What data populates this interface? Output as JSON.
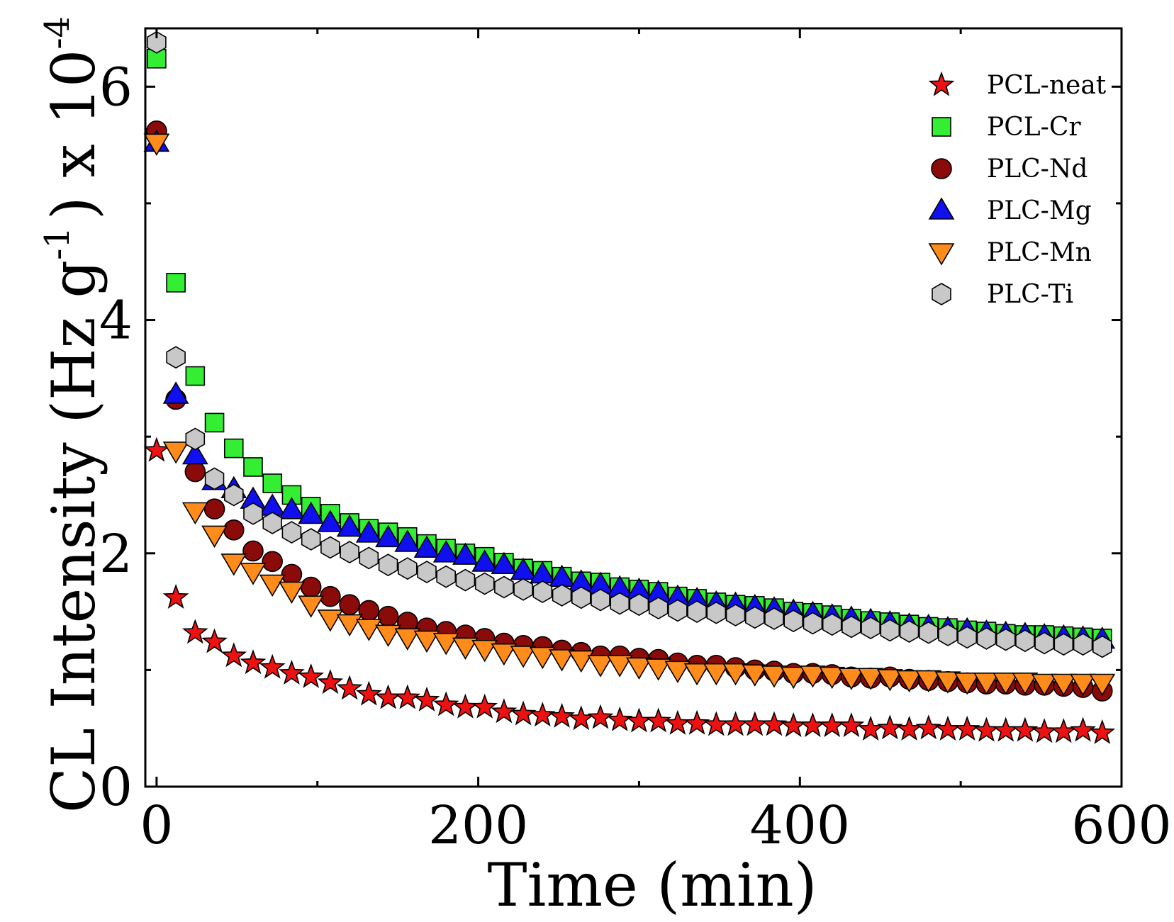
{
  "chart_data": {
    "type": "scatter",
    "xlabel": "Time (min)",
    "ylabel": {
      "prefix": "CL Intensity (Hz g",
      "sup1": "-1",
      "mid": ") x 10",
      "sup2": "-4"
    },
    "xlim": [
      -7,
      600
    ],
    "ylim": [
      0,
      6.5
    ],
    "xticks": [
      0,
      200,
      400,
      600
    ],
    "xtick_labels": [
      "0",
      "200",
      "400",
      "600"
    ],
    "yticks": [
      0,
      2,
      4,
      6
    ],
    "ytick_labels": [
      "0",
      "2",
      "4",
      "6"
    ],
    "legend_position": "top-right",
    "grid": false,
    "series": [
      {
        "name": "PCL-neat",
        "marker": "star",
        "color": "#ee1111",
        "points": [
          [
            0,
            2.88
          ],
          [
            12,
            1.62
          ],
          [
            24,
            1.32
          ],
          [
            36,
            1.24
          ],
          [
            48,
            1.12
          ],
          [
            60,
            1.06
          ],
          [
            72,
            1.02
          ],
          [
            84,
            0.97
          ],
          [
            96,
            0.94
          ],
          [
            108,
            0.89
          ],
          [
            120,
            0.84
          ],
          [
            132,
            0.79
          ],
          [
            144,
            0.76
          ],
          [
            156,
            0.76
          ],
          [
            168,
            0.74
          ],
          [
            180,
            0.7
          ],
          [
            192,
            0.68
          ],
          [
            204,
            0.68
          ],
          [
            216,
            0.64
          ],
          [
            228,
            0.62
          ],
          [
            240,
            0.61
          ],
          [
            252,
            0.6
          ],
          [
            264,
            0.58
          ],
          [
            276,
            0.59
          ],
          [
            288,
            0.57
          ],
          [
            300,
            0.56
          ],
          [
            312,
            0.56
          ],
          [
            324,
            0.54
          ],
          [
            336,
            0.54
          ],
          [
            348,
            0.53
          ],
          [
            360,
            0.53
          ],
          [
            372,
            0.53
          ],
          [
            384,
            0.53
          ],
          [
            396,
            0.52
          ],
          [
            408,
            0.52
          ],
          [
            420,
            0.52
          ],
          [
            432,
            0.52
          ],
          [
            444,
            0.49
          ],
          [
            456,
            0.5
          ],
          [
            468,
            0.49
          ],
          [
            480,
            0.5
          ],
          [
            492,
            0.49
          ],
          [
            504,
            0.49
          ],
          [
            516,
            0.48
          ],
          [
            528,
            0.48
          ],
          [
            540,
            0.48
          ],
          [
            552,
            0.47
          ],
          [
            564,
            0.47
          ],
          [
            576,
            0.48
          ],
          [
            588,
            0.46
          ]
        ]
      },
      {
        "name": "PCL-Cr",
        "marker": "square",
        "color": "#33ee33",
        "points": [
          [
            0,
            6.24
          ],
          [
            12,
            4.32
          ],
          [
            24,
            3.52
          ],
          [
            36,
            3.12
          ],
          [
            48,
            2.9
          ],
          [
            60,
            2.74
          ],
          [
            72,
            2.6
          ],
          [
            84,
            2.5
          ],
          [
            96,
            2.4
          ],
          [
            108,
            2.34
          ],
          [
            120,
            2.26
          ],
          [
            132,
            2.21
          ],
          [
            144,
            2.18
          ],
          [
            156,
            2.14
          ],
          [
            168,
            2.08
          ],
          [
            180,
            2.04
          ],
          [
            192,
            2.0
          ],
          [
            204,
            1.97
          ],
          [
            216,
            1.92
          ],
          [
            228,
            1.87
          ],
          [
            240,
            1.85
          ],
          [
            252,
            1.8
          ],
          [
            264,
            1.76
          ],
          [
            276,
            1.75
          ],
          [
            288,
            1.71
          ],
          [
            300,
            1.69
          ],
          [
            312,
            1.67
          ],
          [
            324,
            1.63
          ],
          [
            336,
            1.61
          ],
          [
            348,
            1.58
          ],
          [
            360,
            1.56
          ],
          [
            372,
            1.55
          ],
          [
            384,
            1.53
          ],
          [
            396,
            1.5
          ],
          [
            408,
            1.49
          ],
          [
            420,
            1.47
          ],
          [
            432,
            1.44
          ],
          [
            444,
            1.42
          ],
          [
            456,
            1.41
          ],
          [
            468,
            1.39
          ],
          [
            480,
            1.37
          ],
          [
            492,
            1.36
          ],
          [
            504,
            1.34
          ],
          [
            516,
            1.33
          ],
          [
            528,
            1.31
          ],
          [
            540,
            1.3
          ],
          [
            552,
            1.3
          ],
          [
            564,
            1.29
          ],
          [
            576,
            1.28
          ],
          [
            588,
            1.27
          ]
        ]
      },
      {
        "name": "PLC-Nd",
        "marker": "circle",
        "color": "#8b0a0a",
        "points": [
          [
            0,
            5.62
          ],
          [
            12,
            3.32
          ],
          [
            24,
            2.7
          ],
          [
            36,
            2.38
          ],
          [
            48,
            2.2
          ],
          [
            60,
            2.02
          ],
          [
            72,
            1.93
          ],
          [
            84,
            1.82
          ],
          [
            96,
            1.71
          ],
          [
            108,
            1.63
          ],
          [
            120,
            1.56
          ],
          [
            132,
            1.51
          ],
          [
            144,
            1.46
          ],
          [
            156,
            1.41
          ],
          [
            168,
            1.36
          ],
          [
            180,
            1.33
          ],
          [
            192,
            1.3
          ],
          [
            204,
            1.27
          ],
          [
            216,
            1.23
          ],
          [
            228,
            1.21
          ],
          [
            240,
            1.2
          ],
          [
            252,
            1.17
          ],
          [
            264,
            1.15
          ],
          [
            276,
            1.12
          ],
          [
            288,
            1.12
          ],
          [
            300,
            1.1
          ],
          [
            312,
            1.09
          ],
          [
            324,
            1.06
          ],
          [
            336,
            1.04
          ],
          [
            348,
            1.04
          ],
          [
            360,
            1.02
          ],
          [
            372,
            1.0
          ],
          [
            384,
            0.99
          ],
          [
            396,
            0.97
          ],
          [
            408,
            0.97
          ],
          [
            420,
            0.96
          ],
          [
            432,
            0.94
          ],
          [
            444,
            0.93
          ],
          [
            456,
            0.94
          ],
          [
            468,
            0.92
          ],
          [
            480,
            0.91
          ],
          [
            492,
            0.9
          ],
          [
            504,
            0.89
          ],
          [
            516,
            0.88
          ],
          [
            528,
            0.88
          ],
          [
            540,
            0.87
          ],
          [
            552,
            0.87
          ],
          [
            564,
            0.86
          ],
          [
            576,
            0.85
          ],
          [
            588,
            0.82
          ]
        ]
      },
      {
        "name": "PLC-Mg",
        "marker": "triangle-up",
        "color": "#1010ee",
        "points": [
          [
            0,
            5.52
          ],
          [
            12,
            3.36
          ],
          [
            24,
            2.84
          ],
          [
            36,
            2.62
          ],
          [
            48,
            2.55
          ],
          [
            60,
            2.46
          ],
          [
            72,
            2.4
          ],
          [
            84,
            2.37
          ],
          [
            96,
            2.33
          ],
          [
            108,
            2.26
          ],
          [
            120,
            2.22
          ],
          [
            132,
            2.17
          ],
          [
            144,
            2.13
          ],
          [
            156,
            2.09
          ],
          [
            168,
            2.04
          ],
          [
            180,
            2.0
          ],
          [
            192,
            1.98
          ],
          [
            204,
            1.92
          ],
          [
            216,
            1.9
          ],
          [
            228,
            1.85
          ],
          [
            240,
            1.82
          ],
          [
            252,
            1.79
          ],
          [
            264,
            1.75
          ],
          [
            276,
            1.73
          ],
          [
            288,
            1.7
          ],
          [
            300,
            1.68
          ],
          [
            312,
            1.66
          ],
          [
            324,
            1.62
          ],
          [
            336,
            1.6
          ],
          [
            348,
            1.57
          ],
          [
            360,
            1.56
          ],
          [
            372,
            1.54
          ],
          [
            384,
            1.52
          ],
          [
            396,
            1.5
          ],
          [
            408,
            1.48
          ],
          [
            420,
            1.46
          ],
          [
            432,
            1.44
          ],
          [
            444,
            1.42
          ],
          [
            456,
            1.4
          ],
          [
            468,
            1.38
          ],
          [
            480,
            1.37
          ],
          [
            492,
            1.35
          ],
          [
            504,
            1.34
          ],
          [
            516,
            1.32
          ],
          [
            528,
            1.31
          ],
          [
            540,
            1.3
          ],
          [
            552,
            1.29
          ],
          [
            564,
            1.28
          ],
          [
            576,
            1.27
          ],
          [
            588,
            1.26
          ]
        ]
      },
      {
        "name": "PLC-Mn",
        "marker": "triangle-down",
        "color": "#ff8c1a",
        "points": [
          [
            0,
            5.52
          ],
          [
            12,
            2.88
          ],
          [
            24,
            2.36
          ],
          [
            36,
            2.16
          ],
          [
            48,
            1.92
          ],
          [
            60,
            1.84
          ],
          [
            72,
            1.74
          ],
          [
            84,
            1.68
          ],
          [
            96,
            1.56
          ],
          [
            108,
            1.44
          ],
          [
            120,
            1.4
          ],
          [
            132,
            1.36
          ],
          [
            144,
            1.31
          ],
          [
            156,
            1.28
          ],
          [
            168,
            1.26
          ],
          [
            180,
            1.24
          ],
          [
            192,
            1.2
          ],
          [
            204,
            1.18
          ],
          [
            216,
            1.15
          ],
          [
            228,
            1.13
          ],
          [
            240,
            1.12
          ],
          [
            252,
            1.1
          ],
          [
            264,
            1.09
          ],
          [
            276,
            1.05
          ],
          [
            288,
            1.05
          ],
          [
            300,
            1.03
          ],
          [
            312,
            1.02
          ],
          [
            324,
            1.0
          ],
          [
            336,
            0.98
          ],
          [
            348,
            0.98
          ],
          [
            360,
            0.98
          ],
          [
            372,
            0.97
          ],
          [
            384,
            0.96
          ],
          [
            396,
            0.95
          ],
          [
            408,
            0.96
          ],
          [
            420,
            0.95
          ],
          [
            432,
            0.94
          ],
          [
            444,
            0.94
          ],
          [
            456,
            0.93
          ],
          [
            468,
            0.92
          ],
          [
            480,
            0.92
          ],
          [
            492,
            0.91
          ],
          [
            504,
            0.9
          ],
          [
            516,
            0.9
          ],
          [
            528,
            0.9
          ],
          [
            540,
            0.9
          ],
          [
            552,
            0.89
          ],
          [
            564,
            0.89
          ],
          [
            576,
            0.89
          ],
          [
            588,
            0.89
          ]
        ]
      },
      {
        "name": "PLC-Ti",
        "marker": "hexagon",
        "color": "#c8c8c8",
        "points": [
          [
            0,
            6.38
          ],
          [
            12,
            3.68
          ],
          [
            24,
            2.98
          ],
          [
            36,
            2.64
          ],
          [
            48,
            2.5
          ],
          [
            60,
            2.34
          ],
          [
            72,
            2.26
          ],
          [
            84,
            2.18
          ],
          [
            96,
            2.12
          ],
          [
            108,
            2.05
          ],
          [
            120,
            2.01
          ],
          [
            132,
            1.96
          ],
          [
            144,
            1.9
          ],
          [
            156,
            1.87
          ],
          [
            168,
            1.84
          ],
          [
            180,
            1.8
          ],
          [
            192,
            1.77
          ],
          [
            204,
            1.74
          ],
          [
            216,
            1.71
          ],
          [
            228,
            1.69
          ],
          [
            240,
            1.67
          ],
          [
            252,
            1.64
          ],
          [
            264,
            1.62
          ],
          [
            276,
            1.6
          ],
          [
            288,
            1.57
          ],
          [
            300,
            1.56
          ],
          [
            312,
            1.53
          ],
          [
            324,
            1.51
          ],
          [
            336,
            1.5
          ],
          [
            348,
            1.49
          ],
          [
            360,
            1.47
          ],
          [
            372,
            1.45
          ],
          [
            384,
            1.44
          ],
          [
            396,
            1.42
          ],
          [
            408,
            1.4
          ],
          [
            420,
            1.39
          ],
          [
            432,
            1.37
          ],
          [
            444,
            1.36
          ],
          [
            456,
            1.34
          ],
          [
            468,
            1.33
          ],
          [
            480,
            1.32
          ],
          [
            492,
            1.3
          ],
          [
            504,
            1.28
          ],
          [
            516,
            1.27
          ],
          [
            528,
            1.26
          ],
          [
            540,
            1.25
          ],
          [
            552,
            1.23
          ],
          [
            564,
            1.22
          ],
          [
            576,
            1.22
          ],
          [
            588,
            1.2
          ]
        ]
      }
    ]
  }
}
